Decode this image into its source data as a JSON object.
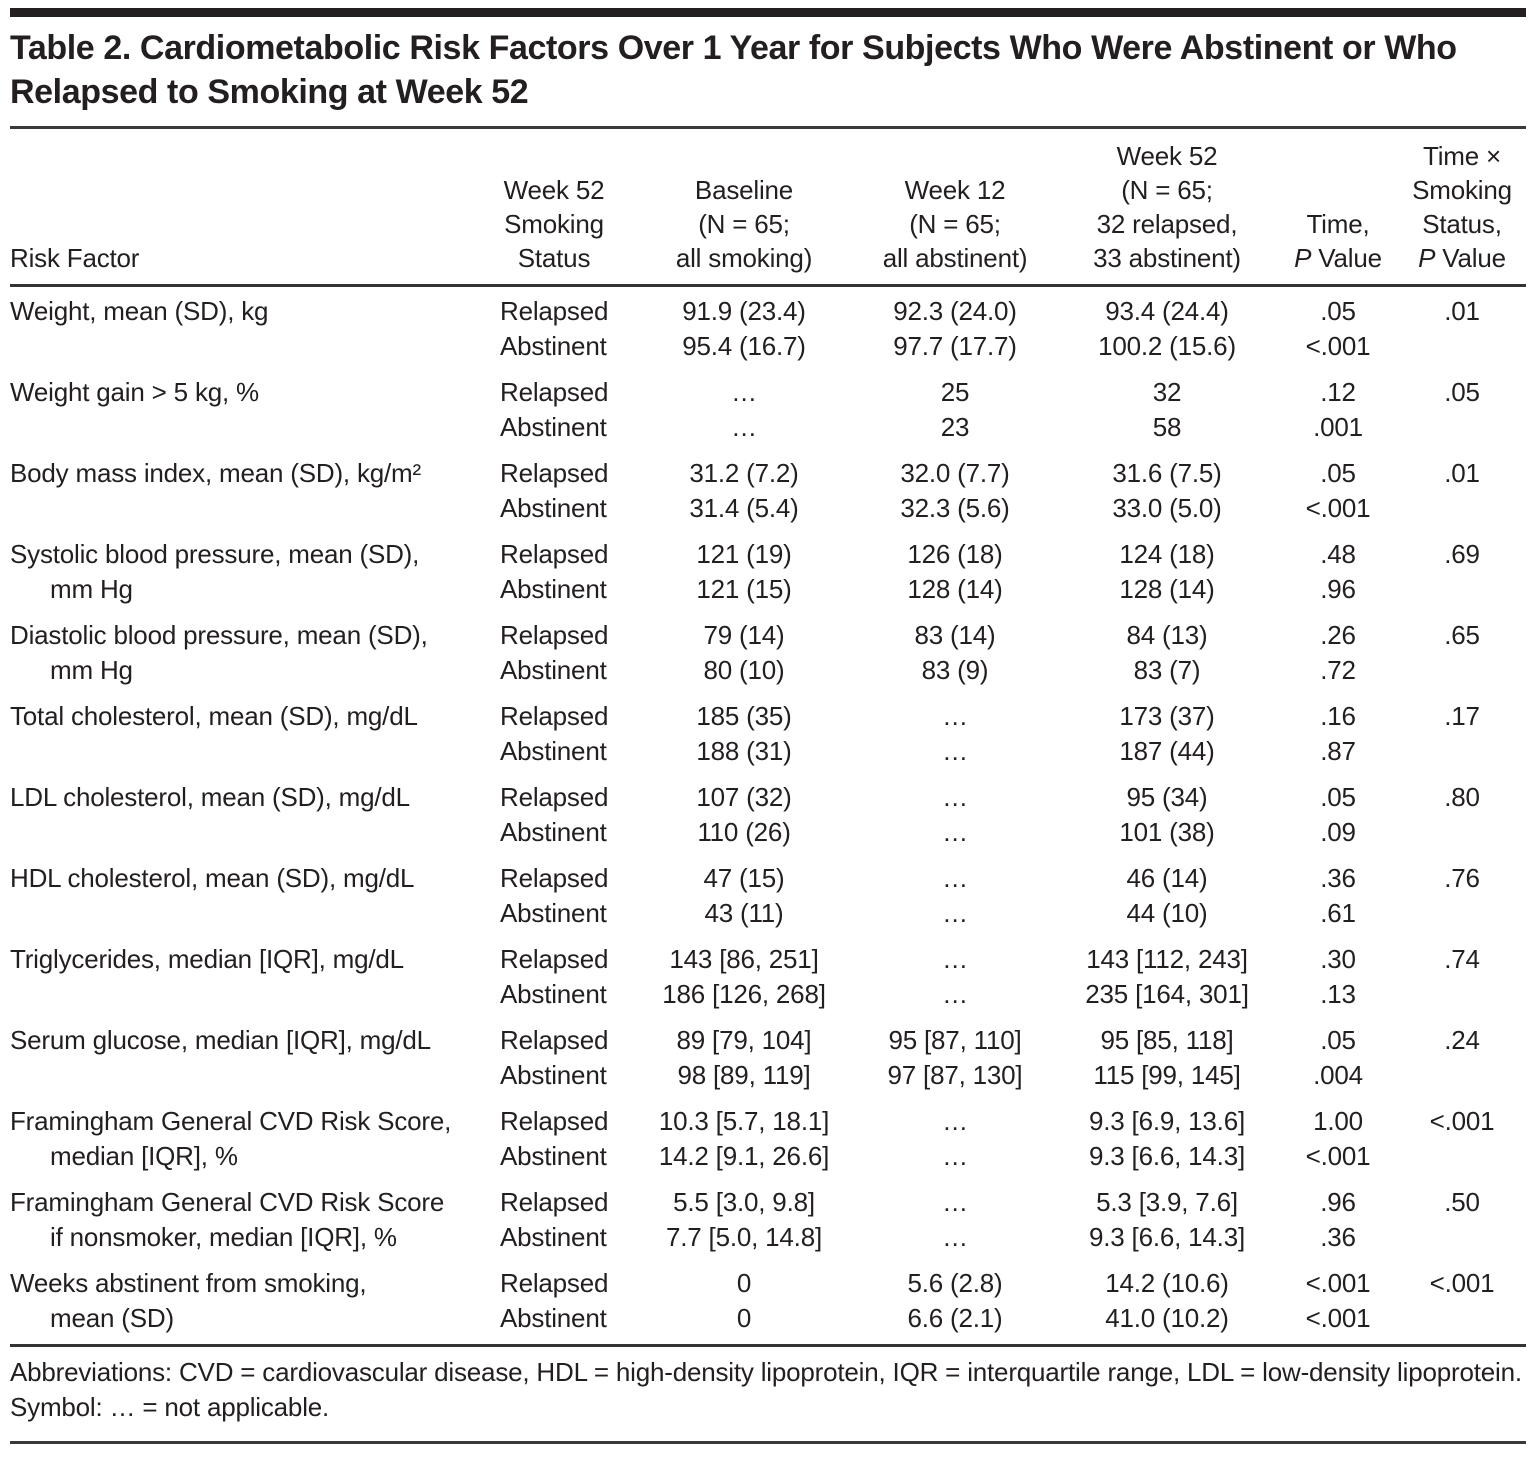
{
  "page": {
    "background": "#ffffff",
    "text_color": "#231f20",
    "rule_color": "#333333"
  },
  "title": "Table 2. Cardiometabolic Risk Factors Over 1 Year for Subjects Who Were Abstinent or Who Relapsed to Smoking at Week 52",
  "table": {
    "na_symbol": "…",
    "columns": [
      {
        "id": "risk-factor",
        "lines": [
          "Risk Factor"
        ]
      },
      {
        "id": "smoking-status",
        "lines": [
          "Week 52",
          "Smoking",
          "Status"
        ]
      },
      {
        "id": "baseline",
        "lines": [
          "Baseline",
          "(N = 65;",
          "all smoking)"
        ]
      },
      {
        "id": "week-12",
        "lines": [
          "Week 12",
          "(N = 65;",
          "all abstinent)"
        ]
      },
      {
        "id": "week-52",
        "lines": [
          "Week 52",
          "(N = 65;",
          "32 relapsed,",
          "33 abstinent)"
        ]
      },
      {
        "id": "time-p-value",
        "lines": [
          "Time,",
          "P Value"
        ]
      },
      {
        "id": "interaction-p-value",
        "lines": [
          "Time ×",
          "Smoking",
          "Status,",
          "P Value"
        ]
      }
    ],
    "rows": [
      {
        "label_lines": [
          "Weight, mean (SD), kg"
        ],
        "entries": [
          {
            "status": "Relapsed",
            "baseline": "91.9 (23.4)",
            "week12": "92.3 (24.0)",
            "week52": "93.4 (24.4)",
            "time_p": ".05",
            "interaction_p": ".01"
          },
          {
            "status": "Abstinent",
            "baseline": "95.4 (16.7)",
            "week12": "97.7 (17.7)",
            "week52": "100.2 (15.6)",
            "time_p": "<.001",
            "interaction_p": ""
          }
        ]
      },
      {
        "label_lines": [
          "Weight gain > 5 kg, %"
        ],
        "entries": [
          {
            "status": "Relapsed",
            "baseline": "…",
            "week12": "25",
            "week52": "32",
            "time_p": ".12",
            "interaction_p": ".05"
          },
          {
            "status": "Abstinent",
            "baseline": "…",
            "week12": "23",
            "week52": "58",
            "time_p": ".001",
            "interaction_p": ""
          }
        ]
      },
      {
        "label_lines": [
          "Body mass index, mean (SD), kg/m²"
        ],
        "entries": [
          {
            "status": "Relapsed",
            "baseline": "31.2 (7.2)",
            "week12": "32.0 (7.7)",
            "week52": "31.6 (7.5)",
            "time_p": ".05",
            "interaction_p": ".01"
          },
          {
            "status": "Abstinent",
            "baseline": "31.4 (5.4)",
            "week12": "32.3 (5.6)",
            "week52": "33.0 (5.0)",
            "time_p": "<.001",
            "interaction_p": ""
          }
        ]
      },
      {
        "label_lines": [
          "Systolic blood pressure, mean (SD),",
          "mm Hg"
        ],
        "entries": [
          {
            "status": "Relapsed",
            "baseline": "121 (19)",
            "week12": "126 (18)",
            "week52": "124 (18)",
            "time_p": ".48",
            "interaction_p": ".69"
          },
          {
            "status": "Abstinent",
            "baseline": "121 (15)",
            "week12": "128 (14)",
            "week52": "128 (14)",
            "time_p": ".96",
            "interaction_p": ""
          }
        ]
      },
      {
        "label_lines": [
          "Diastolic blood pressure, mean (SD),",
          "mm Hg"
        ],
        "entries": [
          {
            "status": "Relapsed",
            "baseline": "79 (14)",
            "week12": "83 (14)",
            "week52": "84 (13)",
            "time_p": ".26",
            "interaction_p": ".65"
          },
          {
            "status": "Abstinent",
            "baseline": "80 (10)",
            "week12": "83 (9)",
            "week52": "83 (7)",
            "time_p": ".72",
            "interaction_p": ""
          }
        ]
      },
      {
        "label_lines": [
          "Total cholesterol, mean (SD), mg/dL"
        ],
        "entries": [
          {
            "status": "Relapsed",
            "baseline": "185 (35)",
            "week12": "…",
            "week52": "173 (37)",
            "time_p": ".16",
            "interaction_p": ".17"
          },
          {
            "status": "Abstinent",
            "baseline": "188 (31)",
            "week12": "…",
            "week52": "187 (44)",
            "time_p": ".87",
            "interaction_p": ""
          }
        ]
      },
      {
        "label_lines": [
          "LDL cholesterol, mean (SD), mg/dL"
        ],
        "entries": [
          {
            "status": "Relapsed",
            "baseline": "107 (32)",
            "week12": "…",
            "week52": "95 (34)",
            "time_p": ".05",
            "interaction_p": ".80"
          },
          {
            "status": "Abstinent",
            "baseline": "110 (26)",
            "week12": "…",
            "week52": "101 (38)",
            "time_p": ".09",
            "interaction_p": ""
          }
        ]
      },
      {
        "label_lines": [
          "HDL cholesterol, mean (SD), mg/dL"
        ],
        "entries": [
          {
            "status": "Relapsed",
            "baseline": "47 (15)",
            "week12": "…",
            "week52": "46 (14)",
            "time_p": ".36",
            "interaction_p": ".76"
          },
          {
            "status": "Abstinent",
            "baseline": "43 (11)",
            "week12": "…",
            "week52": "44 (10)",
            "time_p": ".61",
            "interaction_p": ""
          }
        ]
      },
      {
        "label_lines": [
          "Triglycerides, median [IQR], mg/dL"
        ],
        "entries": [
          {
            "status": "Relapsed",
            "baseline": "143 [86, 251]",
            "week12": "…",
            "week52": "143 [112, 243]",
            "time_p": ".30",
            "interaction_p": ".74"
          },
          {
            "status": "Abstinent",
            "baseline": "186 [126, 268]",
            "week12": "…",
            "week52": "235 [164, 301]",
            "time_p": ".13",
            "interaction_p": ""
          }
        ]
      },
      {
        "label_lines": [
          "Serum glucose, median [IQR], mg/dL"
        ],
        "entries": [
          {
            "status": "Relapsed",
            "baseline": "89 [79, 104]",
            "week12": "95 [87, 110]",
            "week52": "95 [85, 118]",
            "time_p": ".05",
            "interaction_p": ".24"
          },
          {
            "status": "Abstinent",
            "baseline": "98 [89, 119]",
            "week12": "97 [87, 130]",
            "week52": "115 [99, 145]",
            "time_p": ".004",
            "interaction_p": ""
          }
        ]
      },
      {
        "label_lines": [
          "Framingham General CVD Risk Score,",
          "median [IQR], %"
        ],
        "entries": [
          {
            "status": "Relapsed",
            "baseline": "10.3 [5.7, 18.1]",
            "week12": "…",
            "week52": "9.3 [6.9, 13.6]",
            "time_p": "1.00",
            "interaction_p": "<.001"
          },
          {
            "status": "Abstinent",
            "baseline": "14.2 [9.1, 26.6]",
            "week12": "…",
            "week52": "9.3 [6.6, 14.3]",
            "time_p": "<.001",
            "interaction_p": ""
          }
        ]
      },
      {
        "label_lines": [
          "Framingham General CVD Risk Score",
          "if nonsmoker, median [IQR], %"
        ],
        "entries": [
          {
            "status": "Relapsed",
            "baseline": "5.5 [3.0, 9.8]",
            "week12": "…",
            "week52": "5.3 [3.9, 7.6]",
            "time_p": ".96",
            "interaction_p": ".50"
          },
          {
            "status": "Abstinent",
            "baseline": "7.7 [5.0, 14.8]",
            "week12": "…",
            "week52": "9.3 [6.6, 14.3]",
            "time_p": ".36",
            "interaction_p": ""
          }
        ]
      },
      {
        "label_lines": [
          "Weeks abstinent from smoking,",
          "mean (SD)"
        ],
        "entries": [
          {
            "status": "Relapsed",
            "baseline": "0",
            "week12": "5.6 (2.8)",
            "week52": "14.2 (10.6)",
            "time_p": "<.001",
            "interaction_p": "<.001"
          },
          {
            "status": "Abstinent",
            "baseline": "0",
            "week12": "6.6 (2.1)",
            "week52": "41.0 (10.2)",
            "time_p": "<.001",
            "interaction_p": ""
          }
        ]
      }
    ]
  },
  "footnotes": [
    "Abbreviations: CVD = cardiovascular disease, HDL = high-density lipoprotein, IQR = interquartile range, LDL = low-density lipoprotein.",
    "Symbol: … = not applicable."
  ]
}
